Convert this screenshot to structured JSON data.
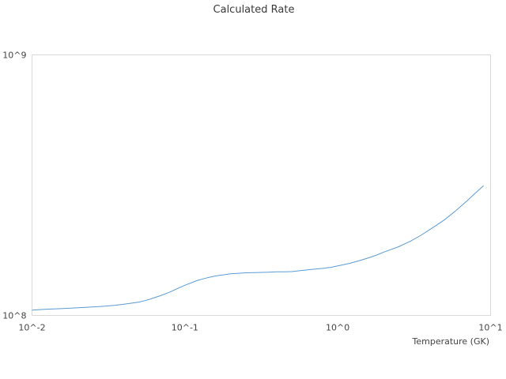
{
  "chart_data": {
    "type": "line",
    "title": "Calculated Rate",
    "xlabel": "Temperature (GK)",
    "ylabel": "",
    "x_scale": "log",
    "y_scale": "log",
    "xlim": [
      0.01,
      10
    ],
    "ylim": [
      100000000,
      1000000000
    ],
    "x_ticks": [
      0.01,
      0.1,
      1,
      10
    ],
    "x_tick_labels": [
      "10^-2",
      "10^-1",
      "10^0",
      "10^1"
    ],
    "y_ticks": [
      100000000,
      1000000000
    ],
    "y_tick_labels": [
      "10^8",
      "10^9"
    ],
    "grid": false,
    "legend": "none",
    "series": [
      {
        "color": "#5b9bd5",
        "x": [
          0.01,
          0.012,
          0.015,
          0.018,
          0.02,
          0.025,
          0.03,
          0.035,
          0.04,
          0.045,
          0.05,
          0.055,
          0.06,
          0.07,
          0.08,
          0.09,
          0.1,
          0.12,
          0.14,
          0.16,
          0.18,
          0.2,
          0.25,
          0.3,
          0.35,
          0.4,
          0.45,
          0.5,
          0.6,
          0.7,
          0.8,
          0.9,
          1.0,
          1.2,
          1.4,
          1.6,
          1.8,
          2.0,
          2.5,
          3.0,
          3.5,
          4.0,
          5.0,
          6.0,
          7.0,
          8.0,
          9.0
        ],
        "y": [
          104800000,
          105600000,
          106100000,
          106600000,
          107100000,
          107800000,
          108500000,
          109400000,
          110500000,
          111500000,
          112500000,
          114000000,
          115800000,
          119400000,
          123000000,
          127000000,
          130500000,
          136000000,
          139500000,
          141800000,
          143200000,
          144500000,
          145800000,
          146200000,
          146600000,
          147000000,
          147100000,
          147300000,
          149000000,
          150500000,
          151600000,
          153000000,
          155000000,
          158500000,
          162500000,
          166500000,
          170500000,
          175000000,
          183500000,
          193000000,
          203000000,
          213500000,
          233000000,
          254000000,
          275000000,
          296000000,
          315000000
        ]
      }
    ]
  }
}
